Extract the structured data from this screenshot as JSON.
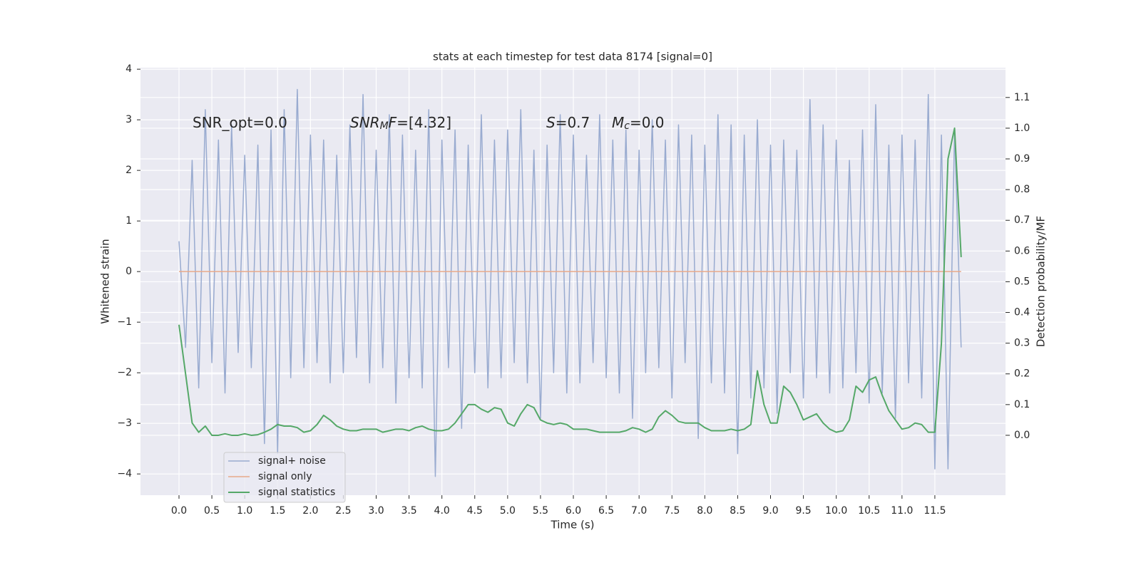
{
  "chart_data": {
    "type": "line",
    "title": "stats at each timestep for test data 8174 [signal=0]",
    "xlabel": "Time (s)",
    "ylabel": "Whitened strain",
    "y2label": "Detection probability/MF",
    "annotations": [
      [
        {
          "text": "SNR_opt=0.0"
        }
      ],
      [
        {
          "text": "SNR",
          "italic": true
        },
        {
          "text": "M",
          "italic": true,
          "sub": true
        },
        {
          "text": "F",
          "italic": true
        },
        {
          "text": "=[4.32]"
        }
      ],
      [
        {
          "text": "S",
          "italic": true
        },
        {
          "text": "=0.7"
        }
      ],
      [
        {
          "text": "M",
          "italic": true
        },
        {
          "text": "c",
          "italic": true,
          "sub": true
        },
        {
          "text": "=0.0"
        }
      ]
    ],
    "x": [
      0,
      0.1,
      0.2,
      0.3,
      0.4,
      0.5,
      0.6,
      0.7,
      0.8,
      0.9,
      1,
      1.1,
      1.2,
      1.3,
      1.4,
      1.5,
      1.6,
      1.7,
      1.8,
      1.9,
      2,
      2.1,
      2.2,
      2.3,
      2.4,
      2.5,
      2.6,
      2.7,
      2.8,
      2.9,
      3,
      3.1,
      3.2,
      3.3,
      3.4,
      3.5,
      3.6,
      3.7,
      3.8,
      3.9,
      4,
      4.1,
      4.2,
      4.3,
      4.4,
      4.5,
      4.6,
      4.7,
      4.8,
      4.9,
      5,
      5.1,
      5.2,
      5.3,
      5.4,
      5.5,
      5.6,
      5.7,
      5.8,
      5.9,
      6,
      6.1,
      6.2,
      6.3,
      6.4,
      6.5,
      6.6,
      6.7,
      6.8,
      6.9,
      7,
      7.1,
      7.2,
      7.3,
      7.4,
      7.5,
      7.6,
      7.7,
      7.8,
      7.9,
      8,
      8.1,
      8.2,
      8.3,
      8.4,
      8.5,
      8.6,
      8.7,
      8.8,
      8.9,
      9,
      9.1,
      9.2,
      9.3,
      9.4,
      9.5,
      9.6,
      9.7,
      9.8,
      9.9,
      10,
      10.1,
      10.2,
      10.3,
      10.4,
      10.5,
      10.6,
      10.7,
      10.8,
      10.9,
      11,
      11.1,
      11.2,
      11.3,
      11.4,
      11.5,
      11.6,
      11.7,
      11.8,
      11.9
    ],
    "series": [
      {
        "name": "signal+ noise",
        "color": "#99abd0",
        "values": [
          0.6,
          -1.5,
          2.2,
          -2.3,
          3.2,
          -1.8,
          2.6,
          -2.4,
          2.9,
          -1.6,
          2.3,
          -1.9,
          2.5,
          -3.4,
          2.8,
          -3.6,
          3.2,
          -2.1,
          3.6,
          -1.9,
          2.7,
          -1.8,
          2.6,
          -2.2,
          2.3,
          -2.0,
          2.9,
          -1.7,
          3.5,
          -2.2,
          2.4,
          -1.9,
          3.1,
          -2.6,
          2.7,
          -2.1,
          2.4,
          -2.3,
          3.2,
          -4.05,
          2.6,
          -1.9,
          2.8,
          -3.1,
          2.5,
          -2.0,
          3.1,
          -2.3,
          2.6,
          -2.1,
          2.8,
          -1.8,
          3.2,
          -2.2,
          2.4,
          -2.9,
          2.5,
          -2.0,
          3.1,
          -2.4,
          2.7,
          -2.2,
          2.3,
          -1.8,
          3.1,
          -2.1,
          2.6,
          -2.4,
          2.8,
          -2.9,
          2.4,
          -2.0,
          3.0,
          -1.9,
          2.6,
          -2.5,
          2.9,
          -1.8,
          2.7,
          -3.3,
          2.5,
          -2.2,
          3.1,
          -2.4,
          2.9,
          -3.6,
          2.7,
          -2.5,
          3.0,
          -2.3,
          2.5,
          -2.8,
          2.6,
          -2.0,
          2.4,
          -2.5,
          3.4,
          -2.1,
          2.9,
          -2.4,
          2.6,
          -2.3,
          2.2,
          -2.0,
          2.8,
          -2.6,
          3.3,
          -2.4,
          2.5,
          -2.9,
          2.7,
          -2.2,
          2.6,
          -2.5,
          3.5,
          -3.9,
          2.7,
          -3.9,
          2.8,
          -1.5
        ]
      },
      {
        "name": "signal only",
        "color": "#e8a98a",
        "values": [
          0,
          0,
          0,
          0,
          0,
          0,
          0,
          0,
          0,
          0,
          0,
          0,
          0,
          0,
          0,
          0,
          0,
          0,
          0,
          0,
          0,
          0,
          0,
          0,
          0,
          0,
          0,
          0,
          0,
          0,
          0,
          0,
          0,
          0,
          0,
          0,
          0,
          0,
          0,
          0,
          0,
          0,
          0,
          0,
          0,
          0,
          0,
          0,
          0,
          0,
          0,
          0,
          0,
          0,
          0,
          0,
          0,
          0,
          0,
          0,
          0,
          0,
          0,
          0,
          0,
          0,
          0,
          0,
          0,
          0,
          0,
          0,
          0,
          0,
          0,
          0,
          0,
          0,
          0,
          0,
          0,
          0,
          0,
          0,
          0,
          0,
          0,
          0,
          0,
          0,
          0,
          0,
          0,
          0,
          0,
          0,
          0,
          0,
          0,
          0,
          0,
          0,
          0,
          0,
          0,
          0,
          0,
          0,
          0,
          0,
          0,
          0,
          0,
          0,
          0,
          0,
          0,
          0,
          0,
          0
        ]
      },
      {
        "name": "signal statistics",
        "color": "#55a868",
        "axis": "y2",
        "values": [
          0.36,
          0.2,
          0.04,
          0.01,
          0.03,
          0.0,
          0.0,
          0.005,
          0.0,
          0.0,
          0.005,
          0.0,
          0.002,
          0.01,
          0.02,
          0.035,
          0.03,
          0.03,
          0.025,
          0.01,
          0.015,
          0.035,
          0.065,
          0.05,
          0.03,
          0.02,
          0.015,
          0.015,
          0.02,
          0.02,
          0.02,
          0.01,
          0.015,
          0.02,
          0.02,
          0.015,
          0.025,
          0.03,
          0.02,
          0.015,
          0.015,
          0.02,
          0.04,
          0.07,
          0.1,
          0.1,
          0.085,
          0.075,
          0.09,
          0.085,
          0.04,
          0.03,
          0.07,
          0.1,
          0.09,
          0.05,
          0.04,
          0.035,
          0.04,
          0.035,
          0.02,
          0.02,
          0.02,
          0.015,
          0.01,
          0.01,
          0.01,
          0.01,
          0.015,
          0.025,
          0.02,
          0.01,
          0.02,
          0.06,
          0.08,
          0.065,
          0.045,
          0.04,
          0.04,
          0.04,
          0.025,
          0.015,
          0.015,
          0.015,
          0.02,
          0.015,
          0.02,
          0.035,
          0.21,
          0.1,
          0.04,
          0.04,
          0.16,
          0.14,
          0.1,
          0.05,
          0.06,
          0.07,
          0.04,
          0.02,
          0.01,
          0.015,
          0.05,
          0.16,
          0.14,
          0.18,
          0.19,
          0.13,
          0.08,
          0.05,
          0.02,
          0.025,
          0.04,
          0.035,
          0.01,
          0.01,
          0.3,
          0.9,
          1.0,
          0.58
        ]
      }
    ],
    "xlim": [
      -0.586,
      12.575
    ],
    "ylim": [
      -4.42,
      4.03
    ],
    "y2lim": [
      -0.195,
      1.197
    ],
    "xticks": [
      {
        "value": 0,
        "label": "0.0"
      },
      0.5,
      {
        "value": 1,
        "label": "1.0"
      },
      1.5,
      {
        "value": 2,
        "label": "2.0"
      },
      2.5,
      {
        "value": 3,
        "label": "3.0"
      },
      3.5,
      {
        "value": 4,
        "label": "4.0"
      },
      4.5,
      {
        "value": 5,
        "label": "5.0"
      },
      5.5,
      {
        "value": 6,
        "label": "6.0"
      },
      6.5,
      {
        "value": 7,
        "label": "7.0"
      },
      7.5,
      {
        "value": 8,
        "label": "8.0"
      },
      8.5,
      {
        "value": 9,
        "label": "9.0"
      },
      9.5,
      {
        "value": 10,
        "label": "10.0"
      },
      10.5,
      {
        "value": 11,
        "label": "11.0"
      },
      11.5
    ],
    "yticks": [
      {
        "value": -4,
        "label": "−4"
      },
      {
        "value": -3,
        "label": "−3"
      },
      {
        "value": -2,
        "label": "−2"
      },
      {
        "value": -1,
        "label": "−1"
      },
      0,
      1,
      2,
      3,
      4
    ],
    "y2ticks": [
      {
        "value": 0,
        "label": "0.0"
      },
      0.1,
      0.2,
      0.3,
      0.4,
      0.5,
      0.6,
      0.7,
      0.8,
      0.9,
      {
        "value": 1,
        "label": "1.0"
      },
      1.1
    ],
    "grid": true,
    "legend": "lower left"
  }
}
